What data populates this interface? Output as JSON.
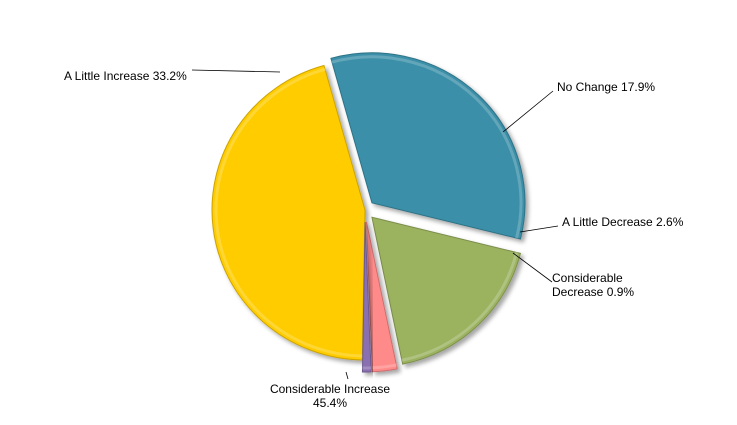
{
  "chart_data": {
    "type": "pie",
    "title": "",
    "slices": [
      {
        "name": "Considerable Increase",
        "value": 45.4,
        "label_lines": [
          "Considerable Increase",
          "45.4%"
        ],
        "color": "#FFCC00"
      },
      {
        "name": "A Little Increase",
        "value": 33.2,
        "label_lines": [
          "A Little Increase  33.2%"
        ],
        "color": "#3A8FA8"
      },
      {
        "name": "No Change",
        "value": 17.9,
        "label_lines": [
          "No Change  17.9%"
        ],
        "color": "#9BB25F"
      },
      {
        "name": "A Little Decrease",
        "value": 2.6,
        "label_lines": [
          "A Little Decrease  2.6%"
        ],
        "color": "#FF8A8A"
      },
      {
        "name": "Considerable Decrease",
        "value": 0.9,
        "label_lines": [
          "Considerable",
          "Decrease  0.9%"
        ],
        "color": "#8A6FB0"
      }
    ]
  }
}
